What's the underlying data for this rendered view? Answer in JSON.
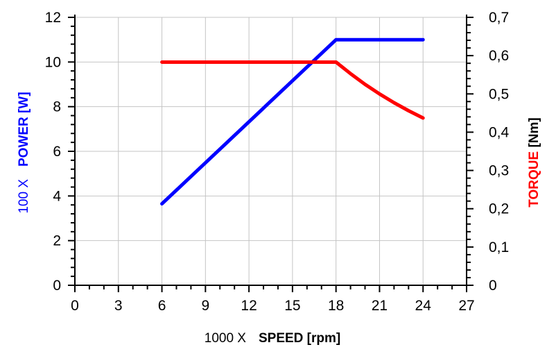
{
  "chart_data": {
    "type": "line",
    "xlabel": {
      "prefix": "1000 X",
      "name": "SPEED [rpm]"
    },
    "ylabel": {
      "prefix": "100 X",
      "name": "POWER [W]"
    },
    "y2label": {
      "name": "TORQUE [Nm]"
    },
    "xlim": [
      0,
      27
    ],
    "ylim": [
      0,
      12
    ],
    "y2lim": [
      0,
      0.7
    ],
    "x_ticks": [
      "0",
      "3",
      "6",
      "9",
      "12",
      "15",
      "18",
      "21",
      "24",
      "27"
    ],
    "y_ticks": [
      "0",
      "2",
      "4",
      "6",
      "8",
      "10",
      "12"
    ],
    "y2_ticks": [
      "0",
      "0,1",
      "0,2",
      "0,3",
      "0,4",
      "0,5",
      "0,6",
      "0,7"
    ],
    "grid": true,
    "series": [
      {
        "axis": "left",
        "color": "#0000ff",
        "x": [
          6,
          18,
          24
        ],
        "y": [
          3.65,
          11,
          11
        ]
      },
      {
        "axis": "right",
        "color": "#ff0000",
        "x": [
          6,
          18,
          19,
          20,
          21,
          22,
          23,
          24
        ],
        "y": [
          0.583,
          0.583,
          0.553,
          0.525,
          0.5,
          0.477,
          0.456,
          0.437
        ]
      }
    ]
  }
}
